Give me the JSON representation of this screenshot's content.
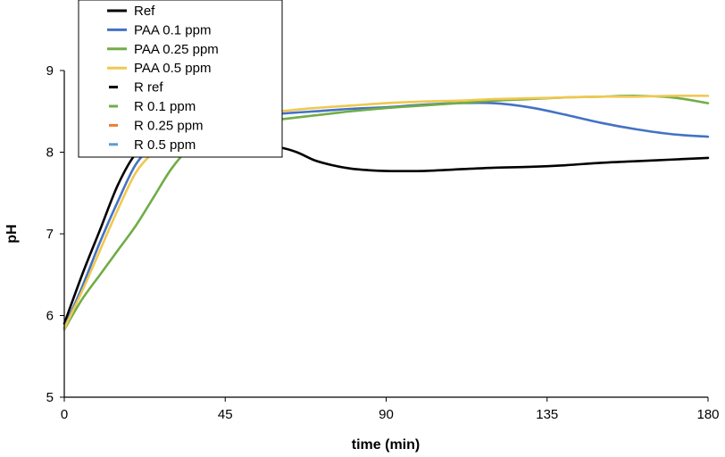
{
  "chart_data": {
    "type": "line",
    "title": "",
    "xlabel": "time (min)",
    "ylabel": "pH",
    "xlim": [
      0,
      180
    ],
    "ylim": [
      5,
      9
    ],
    "xticks": [
      0,
      45,
      90,
      135,
      180
    ],
    "yticks": [
      5,
      6,
      7,
      8,
      9
    ],
    "grid": false,
    "legend_position": "top-left",
    "series": [
      {
        "name": "Ref",
        "color": "#000000",
        "style": "line",
        "x": [
          0,
          5,
          10,
          15,
          20,
          25,
          30,
          35,
          40,
          45,
          50,
          55,
          60,
          65,
          70,
          75,
          80,
          85,
          90,
          100,
          110,
          120,
          130,
          140,
          150,
          160,
          170,
          180
        ],
        "y": [
          5.9,
          6.5,
          7.05,
          7.6,
          7.98,
          8.1,
          8.12,
          8.11,
          8.1,
          8.09,
          8.08,
          8.07,
          8.06,
          8.0,
          7.9,
          7.84,
          7.8,
          7.78,
          7.77,
          7.77,
          7.79,
          7.81,
          7.82,
          7.84,
          7.87,
          7.89,
          7.91,
          7.93
        ]
      },
      {
        "name": "PAA 0.1 ppm",
        "color": "#4472c4",
        "style": "line",
        "x": [
          0,
          5,
          10,
          15,
          20,
          25,
          30,
          35,
          40,
          45,
          50,
          60,
          70,
          80,
          90,
          100,
          110,
          120,
          130,
          140,
          150,
          160,
          170,
          180
        ],
        "y": [
          5.85,
          6.35,
          6.9,
          7.4,
          7.85,
          8.08,
          8.2,
          8.28,
          8.35,
          8.4,
          8.43,
          8.47,
          8.5,
          8.53,
          8.55,
          8.58,
          8.6,
          8.6,
          8.55,
          8.46,
          8.36,
          8.28,
          8.22,
          8.19
        ]
      },
      {
        "name": "PAA 0.25 ppm",
        "color": "#70ad47",
        "style": "line",
        "x": [
          0,
          5,
          10,
          15,
          20,
          25,
          30,
          35,
          40,
          45,
          50,
          60,
          70,
          80,
          90,
          100,
          110,
          120,
          130,
          140,
          150,
          160,
          170,
          180
        ],
        "y": [
          5.83,
          6.2,
          6.5,
          6.8,
          7.1,
          7.45,
          7.8,
          8.05,
          8.2,
          8.3,
          8.35,
          8.4,
          8.45,
          8.5,
          8.54,
          8.57,
          8.6,
          8.63,
          8.65,
          8.67,
          8.68,
          8.69,
          8.67,
          8.6
        ]
      },
      {
        "name": "PAA 0.5 ppm",
        "color": "#f0c850",
        "style": "line",
        "x": [
          0,
          5,
          10,
          15,
          20,
          25,
          30,
          35,
          40,
          45,
          50,
          60,
          70,
          80,
          90,
          100,
          110,
          120,
          130,
          140,
          150,
          160,
          170,
          180
        ],
        "y": [
          5.84,
          6.3,
          6.8,
          7.3,
          7.75,
          8.0,
          8.18,
          8.28,
          8.36,
          8.42,
          8.46,
          8.5,
          8.54,
          8.57,
          8.6,
          8.62,
          8.63,
          8.65,
          8.66,
          8.67,
          8.68,
          8.68,
          8.69,
          8.69
        ]
      },
      {
        "name": "R ref",
        "color": "#000000",
        "style": "dash",
        "x": [],
        "y": []
      },
      {
        "name": "R 0.1 ppm",
        "color": "#70ad47",
        "style": "dash",
        "x": [],
        "y": []
      },
      {
        "name": "R 0.25 ppm",
        "color": "#ed7d31",
        "style": "dash",
        "x": [],
        "y": []
      },
      {
        "name": "R 0.5 ppm",
        "color": "#5b9bd5",
        "style": "dash",
        "x": [],
        "y": []
      }
    ]
  }
}
